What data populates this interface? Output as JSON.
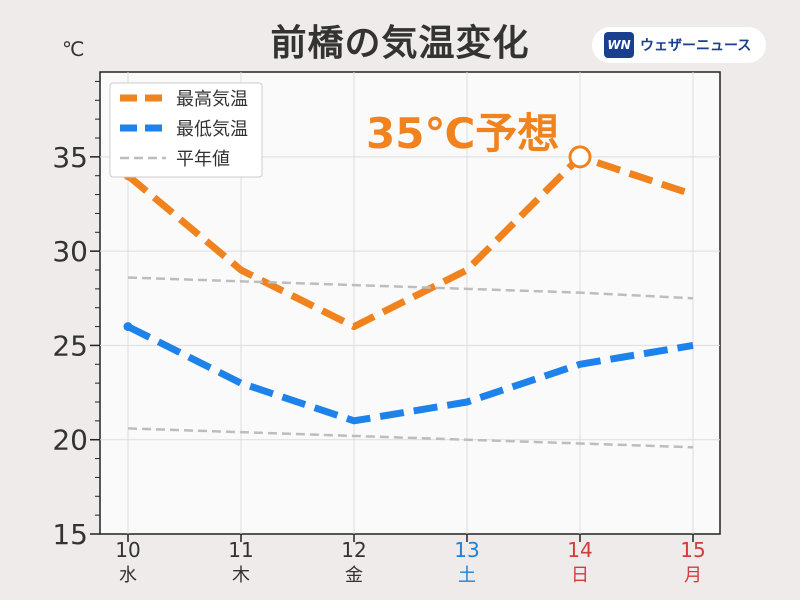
{
  "header": {
    "title": "前橋の気温変化",
    "brand_logo_text": "WN",
    "brand_text": "ウェザーニュース"
  },
  "colors": {
    "high": "#f0831e",
    "low": "#1e82eb",
    "normal": "#bdbdbd",
    "saturday": "#1e82d2",
    "holiday": "#d23c3c",
    "text": "#333333"
  },
  "chart_data": {
    "type": "line",
    "ylabel": "℃",
    "ylim": [
      15,
      39.5
    ],
    "yticks": [
      15,
      20,
      25,
      30,
      35
    ],
    "categories": [
      "10",
      "11",
      "12",
      "13",
      "14",
      "15"
    ],
    "weekdays": [
      "水",
      "木",
      "金",
      "土",
      "日",
      "月"
    ],
    "category_colors": [
      "#333333",
      "#333333",
      "#333333",
      "#1e82d2",
      "#d23c3c",
      "#d23c3c"
    ],
    "series": [
      {
        "name": "最高気温",
        "values": [
          34,
          29,
          26,
          29,
          35,
          33
        ],
        "color": "#f0831e",
        "style": "dashed-thick"
      },
      {
        "name": "最低気温",
        "values": [
          26,
          23,
          21,
          22,
          24,
          25
        ],
        "color": "#1e82eb",
        "style": "dashed-thick"
      },
      {
        "name": "平年値",
        "values": [
          28.6,
          28.4,
          28.2,
          28.0,
          27.8,
          27.5
        ],
        "color": "#bdbdbd",
        "style": "dashed-thin"
      },
      {
        "name": "",
        "values": [
          20.6,
          20.4,
          20.2,
          20.0,
          19.8,
          19.6
        ],
        "color": "#bdbdbd",
        "style": "dashed-thin"
      }
    ],
    "annotation": {
      "text": "35℃予想",
      "category_index": 4,
      "series_index": 0
    },
    "grid": true,
    "legend": "top-left"
  }
}
